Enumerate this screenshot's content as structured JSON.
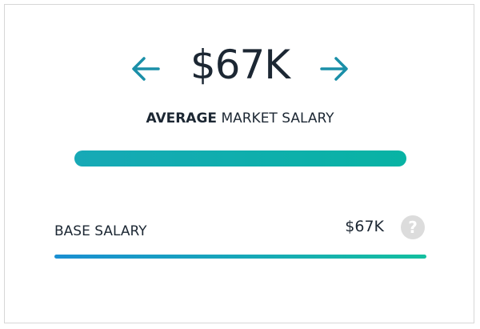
{
  "salary_card": {
    "headline_value": "$67K",
    "headline_label_bold": "AVERAGE",
    "headline_label_rest": "MARKET SALARY",
    "base_salary": {
      "label": "BASE SALARY",
      "value": "$67K",
      "help": "?"
    }
  }
}
